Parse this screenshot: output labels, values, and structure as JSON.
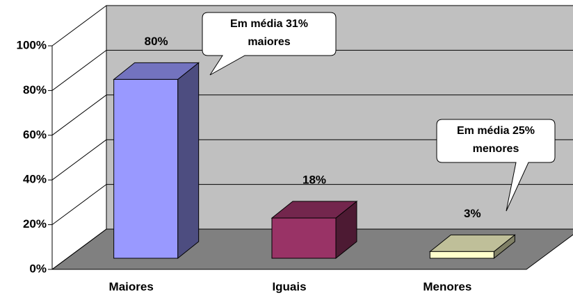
{
  "chart_data": {
    "type": "bar3d",
    "categories": [
      "Maiores",
      "Iguais",
      "Menores"
    ],
    "values": [
      80,
      18,
      3
    ],
    "value_labels": [
      "80%",
      "18%",
      "3%"
    ],
    "colors": [
      "#9999ff",
      "#993366",
      "#ffffcc"
    ],
    "ylim": [
      0,
      100
    ],
    "yticks": [
      {
        "value": 0,
        "label": "0%"
      },
      {
        "value": 20,
        "label": "20%"
      },
      {
        "value": 40,
        "label": "40%"
      },
      {
        "value": 60,
        "label": "60%"
      },
      {
        "value": 80,
        "label": "80%"
      },
      {
        "value": 100,
        "label": "100%"
      }
    ],
    "grid": true,
    "annotations": [
      {
        "lines": [
          "Em média 31%",
          "maiores"
        ]
      },
      {
        "lines": [
          "Em média 25%",
          "menores"
        ]
      }
    ]
  }
}
